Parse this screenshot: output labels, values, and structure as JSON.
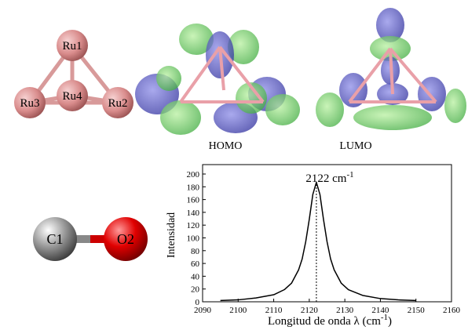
{
  "molecules": {
    "cluster_atoms": [
      "Ru1",
      "Ru2",
      "Ru3",
      "Ru4"
    ],
    "orbital_labels": [
      "HOMO",
      "LUMO"
    ],
    "co_atoms": [
      "C1",
      "O2"
    ]
  },
  "chart_data": {
    "type": "line",
    "annotation": {
      "text": "2122 cm",
      "superscript": "-1"
    },
    "peak_x": 2122,
    "x_label": {
      "text": "Longitud de onda  λ  (cm",
      "superscript": "-1",
      "suffix": ")"
    },
    "y_label": "Intensidad",
    "x": [
      2095,
      2100,
      2105,
      2110,
      2113,
      2115,
      2117,
      2118,
      2119,
      2120,
      2121,
      2122,
      2123,
      2124,
      2125,
      2126,
      2127,
      2129,
      2131,
      2135,
      2140,
      2145,
      2150
    ],
    "values": [
      2,
      3,
      6,
      11,
      19,
      29,
      50,
      67,
      94,
      129,
      168,
      187,
      168,
      129,
      94,
      67,
      50,
      29,
      19,
      10,
      5,
      3,
      2
    ],
    "color": "#000000",
    "xlim": [
      2090,
      2160
    ],
    "xticks": [
      2090,
      2100,
      2110,
      2120,
      2130,
      2140,
      2150,
      2160
    ],
    "ylim": [
      0,
      200
    ],
    "yticks": [
      0,
      20,
      40,
      60,
      80,
      100,
      120,
      140,
      160,
      180,
      200
    ]
  }
}
